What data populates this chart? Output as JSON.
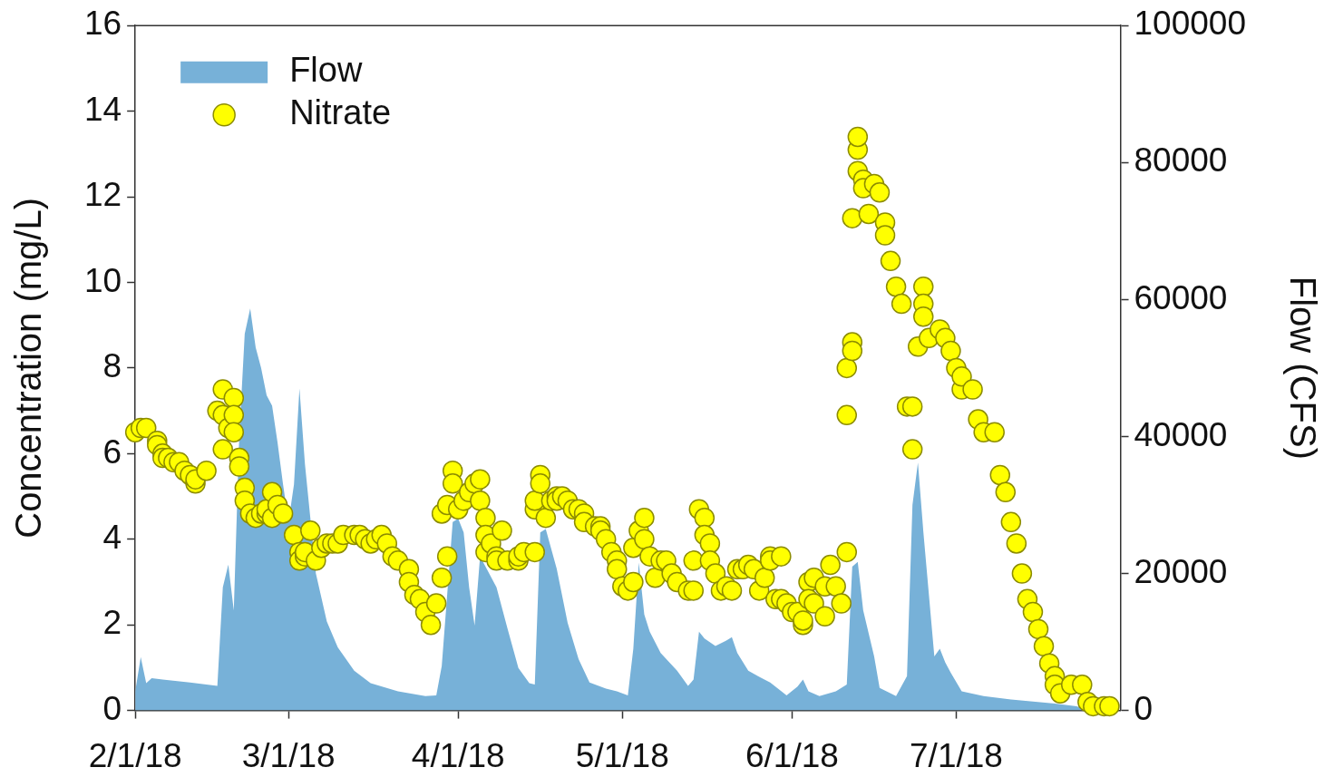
{
  "chart_data": {
    "type": "scatter",
    "ylabel": "Concentration (mg/L)",
    "y2label": "Flow (CFS)",
    "legend": "top left",
    "xlim": [
      "2018-02-01",
      "2018-07-31"
    ],
    "xticks": [
      {
        "value": "2018-02-01",
        "label": "2/1/18"
      },
      {
        "value": "2018-03-01",
        "label": "3/1/18"
      },
      {
        "value": "2018-04-01",
        "label": "4/1/18"
      },
      {
        "value": "2018-05-01",
        "label": "5/1/18"
      },
      {
        "value": "2018-06-01",
        "label": "6/1/18"
      },
      {
        "value": "2018-07-01",
        "label": "7/1/18"
      }
    ],
    "ylim": [
      0,
      16
    ],
    "yticks": [
      0,
      2,
      4,
      6,
      8,
      10,
      12,
      14,
      16
    ],
    "y2lim": [
      0,
      100000
    ],
    "y2ticks": [
      0,
      20000,
      40000,
      60000,
      80000,
      100000
    ],
    "series": [
      {
        "name": "Flow",
        "type": "area",
        "axis": "y2",
        "color": "#77b1d8",
        "x": [
          "2018-02-01",
          "2018-02-02",
          "2018-02-03",
          "2018-02-04",
          "2018-02-06",
          "2018-02-11",
          "2018-02-16",
          "2018-02-17",
          "2018-02-18",
          "2018-02-19",
          "2018-02-20",
          "2018-02-21",
          "2018-02-22",
          "2018-02-23",
          "2018-02-24",
          "2018-02-25",
          "2018-02-26",
          "2018-02-27",
          "2018-02-28",
          "2018-03-01",
          "2018-03-02",
          "2018-03-03",
          "2018-03-04",
          "2018-03-06",
          "2018-03-07",
          "2018-03-08",
          "2018-03-10",
          "2018-03-13",
          "2018-03-16",
          "2018-03-21",
          "2018-03-26",
          "2018-03-28",
          "2018-03-29",
          "2018-03-30",
          "2018-03-31",
          "2018-04-01",
          "2018-04-02",
          "2018-04-03",
          "2018-04-04",
          "2018-04-05",
          "2018-04-06",
          "2018-04-08",
          "2018-04-10",
          "2018-04-12",
          "2018-04-14",
          "2018-04-15",
          "2018-04-16",
          "2018-04-17",
          "2018-04-19",
          "2018-04-21",
          "2018-04-23",
          "2018-04-25",
          "2018-04-28",
          "2018-04-30",
          "2018-05-02",
          "2018-05-03",
          "2018-05-04",
          "2018-05-05",
          "2018-05-06",
          "2018-05-08",
          "2018-05-11",
          "2018-05-13",
          "2018-05-14",
          "2018-05-15",
          "2018-05-16",
          "2018-05-18",
          "2018-05-20",
          "2018-05-21",
          "2018-05-22",
          "2018-05-24",
          "2018-05-26",
          "2018-05-28",
          "2018-05-31",
          "2018-06-02",
          "2018-06-03",
          "2018-06-04",
          "2018-06-06",
          "2018-06-09",
          "2018-06-11",
          "2018-06-12",
          "2018-06-13",
          "2018-06-14",
          "2018-06-16",
          "2018-06-17",
          "2018-06-20",
          "2018-06-22",
          "2018-06-23",
          "2018-06-24",
          "2018-06-25",
          "2018-06-27",
          "2018-06-28",
          "2018-06-29",
          "2018-06-30",
          "2018-07-02",
          "2018-07-06",
          "2018-07-11",
          "2018-07-19",
          "2018-07-23",
          "2018-07-25"
        ],
        "values": [
          2800,
          7800,
          4000,
          4700,
          4500,
          4100,
          3600,
          18000,
          21300,
          14600,
          40000,
          55000,
          58700,
          53000,
          50000,
          46000,
          44500,
          39100,
          33000,
          27500,
          33000,
          47000,
          36000,
          20000,
          16500,
          13000,
          9200,
          5800,
          4000,
          2800,
          2100,
          2200,
          6500,
          17000,
          27500,
          28000,
          26000,
          18000,
          12400,
          22500,
          21000,
          18000,
          12000,
          6200,
          4000,
          3800,
          26000,
          26500,
          20700,
          12800,
          7500,
          4100,
          3200,
          2800,
          2200,
          9000,
          21600,
          14000,
          11500,
          8400,
          5800,
          3600,
          4500,
          11500,
          10500,
          9400,
          10200,
          10700,
          8400,
          5800,
          4900,
          4100,
          2200,
          3500,
          4500,
          2800,
          2100,
          2800,
          3800,
          21000,
          21700,
          14600,
          7900,
          3300,
          2100,
          5000,
          30000,
          36200,
          26000,
          7900,
          9000,
          7000,
          5500,
          2800,
          2100,
          1600,
          1000,
          600,
          0
        ]
      },
      {
        "name": "Nitrate",
        "color": "#ffff00",
        "marker": "circle",
        "x": [
          "2018-02-01",
          "2018-02-02",
          "2018-02-03",
          "2018-02-05",
          "2018-02-05",
          "2018-02-06",
          "2018-02-06",
          "2018-02-07",
          "2018-02-08",
          "2018-02-09",
          "2018-02-10",
          "2018-02-11",
          "2018-02-12",
          "2018-02-12",
          "2018-02-14",
          "2018-02-16",
          "2018-02-17",
          "2018-02-17",
          "2018-02-17",
          "2018-02-18",
          "2018-02-19",
          "2018-02-19",
          "2018-02-19",
          "2018-02-20",
          "2018-02-20",
          "2018-02-21",
          "2018-02-21",
          "2018-02-22",
          "2018-02-23",
          "2018-02-24",
          "2018-02-25",
          "2018-02-25",
          "2018-02-26",
          "2018-02-26",
          "2018-02-27",
          "2018-02-28",
          "2018-03-02",
          "2018-03-03",
          "2018-03-03",
          "2018-03-04",
          "2018-03-04",
          "2018-03-05",
          "2018-03-06",
          "2018-03-07",
          "2018-03-08",
          "2018-03-09",
          "2018-03-10",
          "2018-03-11",
          "2018-03-13",
          "2018-03-14",
          "2018-03-15",
          "2018-03-16",
          "2018-03-17",
          "2018-03-18",
          "2018-03-19",
          "2018-03-20",
          "2018-03-21",
          "2018-03-23",
          "2018-03-23",
          "2018-03-24",
          "2018-03-25",
          "2018-03-26",
          "2018-03-27",
          "2018-03-28",
          "2018-03-29",
          "2018-03-29",
          "2018-03-30",
          "2018-03-30",
          "2018-03-31",
          "2018-03-31",
          "2018-04-01",
          "2018-04-02",
          "2018-04-03",
          "2018-04-04",
          "2018-04-05",
          "2018-04-05",
          "2018-04-06",
          "2018-04-06",
          "2018-04-06",
          "2018-04-07",
          "2018-04-08",
          "2018-04-08",
          "2018-04-09",
          "2018-04-10",
          "2018-04-12",
          "2018-04-12",
          "2018-04-13",
          "2018-04-15",
          "2018-04-15",
          "2018-04-15",
          "2018-04-16",
          "2018-04-16",
          "2018-04-17",
          "2018-04-18",
          "2018-04-19",
          "2018-04-19",
          "2018-04-20",
          "2018-04-21",
          "2018-04-22",
          "2018-04-23",
          "2018-04-24",
          "2018-04-24",
          "2018-04-26",
          "2018-04-27",
          "2018-04-27",
          "2018-04-28",
          "2018-04-29",
          "2018-04-30",
          "2018-04-30",
          "2018-05-01",
          "2018-05-02",
          "2018-05-03",
          "2018-05-03",
          "2018-05-04",
          "2018-05-05",
          "2018-05-05",
          "2018-05-06",
          "2018-05-07",
          "2018-05-08",
          "2018-05-09",
          "2018-05-10",
          "2018-05-11",
          "2018-05-13",
          "2018-05-14",
          "2018-05-14",
          "2018-05-15",
          "2018-05-16",
          "2018-05-16",
          "2018-05-17",
          "2018-05-17",
          "2018-05-18",
          "2018-05-19",
          "2018-05-20",
          "2018-05-21",
          "2018-05-22",
          "2018-05-23",
          "2018-05-24",
          "2018-05-25",
          "2018-05-26",
          "2018-05-27",
          "2018-05-28",
          "2018-05-28",
          "2018-05-29",
          "2018-05-30",
          "2018-05-30",
          "2018-05-31",
          "2018-06-01",
          "2018-06-02",
          "2018-06-03",
          "2018-06-03",
          "2018-06-04",
          "2018-06-04",
          "2018-06-05",
          "2018-06-05",
          "2018-06-07",
          "2018-06-07",
          "2018-06-08",
          "2018-06-09",
          "2018-06-10",
          "2018-06-11",
          "2018-06-11",
          "2018-06-11",
          "2018-06-12",
          "2018-06-12",
          "2018-06-12",
          "2018-06-13",
          "2018-06-13",
          "2018-06-13",
          "2018-06-14",
          "2018-06-14",
          "2018-06-15",
          "2018-06-16",
          "2018-06-17",
          "2018-06-18",
          "2018-06-18",
          "2018-06-19",
          "2018-06-20",
          "2018-06-21",
          "2018-06-22",
          "2018-06-23",
          "2018-06-23",
          "2018-06-24",
          "2018-06-25",
          "2018-06-25",
          "2018-06-25",
          "2018-06-26",
          "2018-06-28",
          "2018-06-29",
          "2018-06-30",
          "2018-07-01",
          "2018-07-02",
          "2018-07-02",
          "2018-07-04",
          "2018-07-05",
          "2018-07-06",
          "2018-07-08",
          "2018-07-09",
          "2018-07-10",
          "2018-07-11",
          "2018-07-12",
          "2018-07-13",
          "2018-07-14",
          "2018-07-15",
          "2018-07-16",
          "2018-07-17",
          "2018-07-18",
          "2018-07-19",
          "2018-07-19",
          "2018-07-20",
          "2018-07-22",
          "2018-07-24",
          "2018-07-25",
          "2018-07-26",
          "2018-07-28",
          "2018-07-29"
        ],
        "values": [
          6.5,
          6.6,
          6.6,
          6.3,
          6.2,
          6.0,
          5.9,
          5.9,
          5.8,
          5.8,
          5.6,
          5.5,
          5.3,
          5.4,
          5.6,
          7.0,
          7.5,
          6.9,
          6.1,
          6.6,
          7.3,
          6.9,
          6.5,
          5.9,
          5.7,
          5.2,
          4.9,
          4.6,
          4.5,
          4.6,
          4.6,
          4.7,
          4.5,
          5.1,
          4.8,
          4.6,
          4.1,
          3.7,
          3.5,
          3.6,
          3.7,
          4.2,
          3.5,
          3.8,
          3.9,
          3.9,
          3.9,
          4.1,
          4.1,
          4.1,
          4.0,
          3.9,
          4.0,
          4.1,
          3.9,
          3.6,
          3.5,
          3.3,
          3.0,
          2.7,
          2.6,
          2.3,
          2.0,
          2.5,
          3.1,
          4.6,
          3.6,
          4.8,
          5.6,
          5.3,
          4.7,
          4.9,
          5.1,
          5.3,
          5.4,
          4.9,
          4.5,
          4.1,
          3.7,
          3.9,
          3.6,
          3.5,
          4.2,
          3.5,
          3.5,
          3.6,
          3.7,
          3.7,
          4.7,
          4.9,
          5.5,
          5.3,
          4.5,
          4.9,
          5.0,
          4.9,
          5.0,
          4.9,
          4.7,
          4.7,
          4.6,
          4.4,
          4.3,
          4.3,
          4.2,
          4.0,
          3.7,
          3.5,
          3.3,
          2.9,
          2.8,
          3.0,
          3.8,
          4.2,
          4.5,
          4.0,
          3.6,
          3.1,
          3.5,
          3.5,
          3.2,
          3.0,
          2.8,
          2.8,
          3.5,
          4.7,
          4.5,
          4.1,
          3.9,
          3.5,
          3.2,
          2.8,
          2.9,
          2.8,
          3.3,
          3.3,
          3.4,
          3.3,
          2.8,
          3.1,
          3.6,
          3.5,
          2.6,
          3.6,
          2.6,
          2.5,
          2.3,
          2.3,
          2.0,
          2.1,
          3.0,
          2.6,
          3.1,
          2.5,
          2.2,
          2.9,
          3.4,
          2.9,
          2.5,
          3.7,
          6.9,
          8.0,
          8.6,
          8.4,
          11.5,
          13.1,
          13.4,
          12.6,
          12.4,
          12.2,
          11.6,
          12.3,
          12.1,
          11.4,
          11.1,
          10.5,
          9.9,
          9.5,
          7.1,
          6.1,
          7.1,
          8.5,
          9.9,
          9.5,
          9.2,
          8.7,
          8.9,
          8.7,
          8.4,
          8.0,
          7.5,
          7.8,
          7.5,
          6.8,
          6.5,
          6.5,
          5.5,
          5.1,
          4.4,
          3.9,
          3.2,
          2.6,
          2.3,
          1.9,
          1.5,
          1.1,
          0.8,
          0.6,
          0.4,
          0.6,
          0.6,
          0.2,
          0.1,
          0.1,
          0.1
        ]
      }
    ]
  }
}
